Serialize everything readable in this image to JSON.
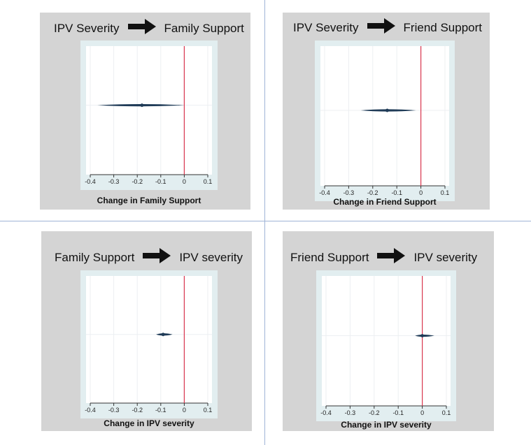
{
  "colors": {
    "panel_bg": "#d4d4d4",
    "plot_outer": "#e2eef0",
    "plot_inner": "#ffffff",
    "reference_line": "#d9364f",
    "marker": "#1f3b57",
    "grid": "#eceff2"
  },
  "icons": {
    "arrow": "right-arrow-icon"
  },
  "chart_data": [
    {
      "type": "scatter",
      "title_from": "IPV Severity",
      "title_to": "Family Support",
      "xlabel": "Change in Family Support",
      "xlim": [
        -0.4,
        0.1
      ],
      "x_ticks": [
        "-0.4",
        "-0.3",
        "-0.2",
        "-0.1",
        "0",
        "0.1"
      ],
      "reference_x": 0,
      "estimate": -0.18,
      "ci": [
        -0.37,
        0.0
      ],
      "grid": true
    },
    {
      "type": "scatter",
      "title_from": "IPV Severity",
      "title_to": "Friend Support",
      "xlabel": "Change in Friend Support",
      "xlim": [
        -0.4,
        0.1
      ],
      "x_ticks": [
        "-0.4",
        "-0.3",
        "-0.2",
        "-0.1",
        "0",
        "0.1"
      ],
      "reference_x": 0,
      "estimate": -0.14,
      "ci": [
        -0.25,
        -0.02
      ],
      "grid": true
    },
    {
      "type": "scatter",
      "title_from": "Family Support",
      "title_to": "IPV severity",
      "xlabel": "Change in IPV severity",
      "xlim": [
        -0.4,
        0.1
      ],
      "x_ticks": [
        "-0.4",
        "-0.3",
        "-0.2",
        "-0.1",
        "0",
        "0.1"
      ],
      "reference_x": 0,
      "estimate": -0.09,
      "ci": [
        -0.12,
        -0.05
      ],
      "grid": true
    },
    {
      "type": "scatter",
      "title_from": "Friend Support",
      "title_to": "IPV severity",
      "xlabel": "Change in IPV severity",
      "xlim": [
        -0.4,
        0.1
      ],
      "x_ticks": [
        "-0.4",
        "-0.3",
        "-0.2",
        "-0.1",
        "0",
        "0.1"
      ],
      "reference_x": 0,
      "estimate": 0.0,
      "ci": [
        -0.03,
        0.05
      ],
      "grid": true
    }
  ]
}
